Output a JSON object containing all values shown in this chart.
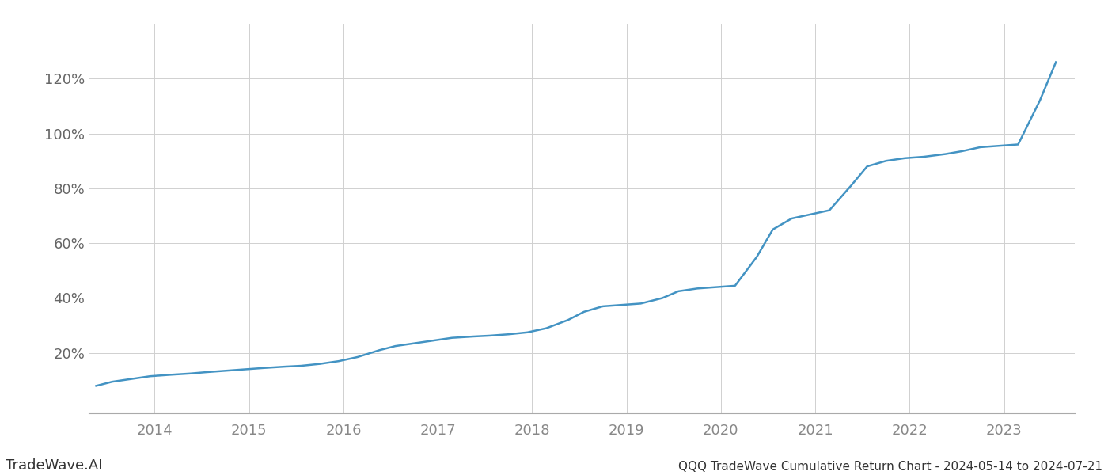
{
  "title": "QQQ TradeWave Cumulative Return Chart - 2024-05-14 to 2024-07-21",
  "watermark": "TradeWave.AI",
  "line_color": "#4393c3",
  "background_color": "#ffffff",
  "grid_color": "#d0d0d0",
  "x_years": [
    2014,
    2015,
    2016,
    2017,
    2018,
    2019,
    2020,
    2021,
    2022,
    2023
  ],
  "x_values": [
    2013.38,
    2013.55,
    2013.75,
    2013.95,
    2014.15,
    2014.38,
    2014.55,
    2014.75,
    2014.95,
    2015.15,
    2015.38,
    2015.55,
    2015.75,
    2015.95,
    2016.15,
    2016.38,
    2016.55,
    2016.75,
    2016.95,
    2017.15,
    2017.38,
    2017.55,
    2017.75,
    2017.95,
    2018.15,
    2018.38,
    2018.55,
    2018.75,
    2018.95,
    2019.15,
    2019.38,
    2019.55,
    2019.75,
    2019.95,
    2020.15,
    2020.38,
    2020.55,
    2020.75,
    2020.95,
    2021.15,
    2021.38,
    2021.55,
    2021.75,
    2021.95,
    2022.15,
    2022.38,
    2022.55,
    2022.75,
    2022.95,
    2023.15,
    2023.38,
    2023.55
  ],
  "y_values": [
    8.0,
    9.5,
    10.5,
    11.5,
    12.0,
    12.5,
    13.0,
    13.5,
    14.0,
    14.5,
    15.0,
    15.3,
    16.0,
    17.0,
    18.5,
    21.0,
    22.5,
    23.5,
    24.5,
    25.5,
    26.0,
    26.3,
    26.8,
    27.5,
    29.0,
    32.0,
    35.0,
    37.0,
    37.5,
    38.0,
    40.0,
    42.5,
    43.5,
    44.0,
    44.5,
    55.0,
    65.0,
    69.0,
    70.5,
    72.0,
    81.0,
    88.0,
    90.0,
    91.0,
    91.5,
    92.5,
    93.5,
    95.0,
    95.5,
    96.0,
    112.0,
    126.0
  ],
  "yticks": [
    20,
    40,
    60,
    80,
    100,
    120
  ],
  "ylim": [
    -2,
    140
  ],
  "xlim": [
    2013.3,
    2023.75
  ],
  "title_fontsize": 11,
  "tick_fontsize": 13,
  "watermark_fontsize": 13,
  "line_width": 1.8
}
